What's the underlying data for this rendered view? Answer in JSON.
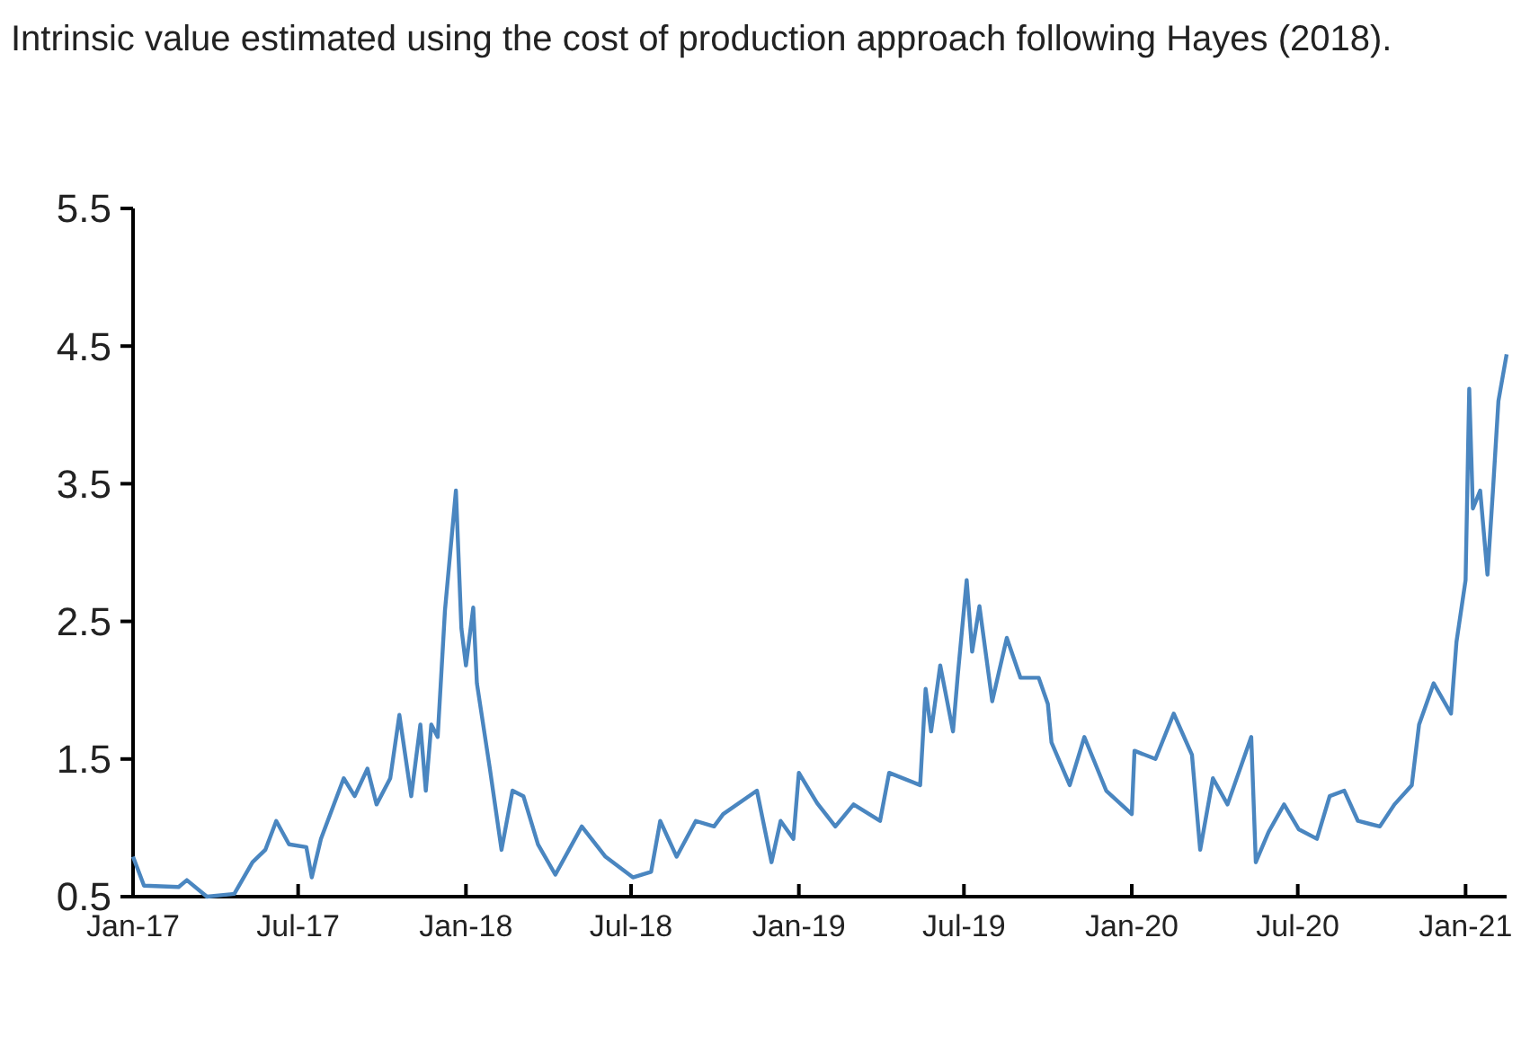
{
  "chart_data": {
    "type": "line",
    "title": "Intrinsic value estimated using the cost of production approach following Hayes (2018).",
    "xlim": [
      "2017-01-01",
      "2021-02-15"
    ],
    "xticks": [
      {
        "value": "2017-01-01",
        "label": "Jan-17"
      },
      {
        "value": "2017-07-01",
        "label": "Jul-17"
      },
      {
        "value": "2018-01-01",
        "label": "Jan-18"
      },
      {
        "value": "2018-07-01",
        "label": "Jul-18"
      },
      {
        "value": "2019-01-01",
        "label": "Jan-19"
      },
      {
        "value": "2019-07-01",
        "label": "Jul-19"
      },
      {
        "value": "2020-01-01",
        "label": "Jan-20"
      },
      {
        "value": "2020-07-01",
        "label": "Jul-20"
      },
      {
        "value": "2021-01-01",
        "label": "Jan-21"
      }
    ],
    "ylim": [
      0.5,
      5.5
    ],
    "yticks": [
      0.5,
      1.5,
      2.5,
      3.5,
      4.5,
      5.5
    ],
    "grid": false,
    "series": [
      {
        "color": "#4a86c0",
        "x": [
          "2017-01-01",
          "2017-01-13",
          "2017-02-20",
          "2017-03-01",
          "2017-03-23",
          "2017-04-22",
          "2017-05-12",
          "2017-05-26",
          "2017-06-07",
          "2017-06-21",
          "2017-07-10",
          "2017-07-16",
          "2017-07-26",
          "2017-08-20",
          "2017-09-01",
          "2017-09-15",
          "2017-09-25",
          "2017-10-10",
          "2017-10-20",
          "2017-11-02",
          "2017-11-12",
          "2017-11-18",
          "2017-11-24",
          "2017-12-01",
          "2017-12-09",
          "2017-12-21",
          "2017-12-27",
          "2018-01-01",
          "2018-01-09",
          "2018-01-13",
          "2018-01-27",
          "2018-02-09",
          "2018-02-21",
          "2018-03-05",
          "2018-03-21",
          "2018-04-09",
          "2018-05-08",
          "2018-06-03",
          "2018-07-03",
          "2018-07-23",
          "2018-08-02",
          "2018-08-20",
          "2018-09-10",
          "2018-09-30",
          "2018-10-10",
          "2018-11-16",
          "2018-12-02",
          "2018-12-12",
          "2018-12-26",
          "2019-01-01",
          "2019-01-21",
          "2019-02-10",
          "2019-03-02",
          "2019-03-31",
          "2019-04-10",
          "2019-05-14",
          "2019-05-20",
          "2019-05-26",
          "2019-06-05",
          "2019-06-19",
          "2019-06-24",
          "2019-07-04",
          "2019-07-10",
          "2019-07-18",
          "2019-08-01",
          "2019-08-17",
          "2019-09-01",
          "2019-09-21",
          "2019-10-01",
          "2019-10-05",
          "2019-10-25",
          "2019-11-10",
          "2019-12-04",
          "2020-01-01",
          "2020-01-04",
          "2020-01-27",
          "2020-02-16",
          "2020-03-07",
          "2020-03-16",
          "2020-03-30",
          "2020-04-15",
          "2020-05-11",
          "2020-05-16",
          "2020-05-30",
          "2020-06-16",
          "2020-07-02",
          "2020-07-22",
          "2020-08-05",
          "2020-08-21",
          "2020-09-05",
          "2020-09-29",
          "2020-10-15",
          "2020-11-03",
          "2020-11-11",
          "2020-11-27",
          "2020-12-16",
          "2020-12-22",
          "2021-01-01",
          "2021-01-05",
          "2021-01-09",
          "2021-01-17",
          "2021-01-25",
          "2021-01-31",
          "2021-02-06",
          "2021-02-15"
        ],
        "values": [
          0.79,
          0.58,
          0.57,
          0.62,
          0.5,
          0.52,
          0.75,
          0.84,
          1.05,
          0.88,
          0.86,
          0.64,
          0.92,
          1.36,
          1.23,
          1.43,
          1.17,
          1.36,
          1.82,
          1.23,
          1.75,
          1.27,
          1.75,
          1.66,
          2.58,
          3.45,
          2.45,
          2.18,
          2.6,
          2.05,
          1.44,
          0.84,
          1.27,
          1.23,
          0.88,
          0.66,
          1.01,
          0.79,
          0.64,
          0.68,
          1.05,
          0.79,
          1.05,
          1.01,
          1.1,
          1.27,
          0.75,
          1.05,
          0.92,
          1.4,
          1.18,
          1.01,
          1.17,
          1.05,
          1.4,
          1.31,
          2.01,
          1.7,
          2.18,
          1.7,
          2.09,
          2.8,
          2.28,
          2.61,
          1.92,
          2.38,
          2.09,
          2.09,
          1.9,
          1.62,
          1.31,
          1.66,
          1.27,
          1.1,
          1.56,
          1.5,
          1.83,
          1.53,
          0.84,
          1.36,
          1.17,
          1.66,
          0.75,
          0.97,
          1.17,
          0.99,
          0.92,
          1.23,
          1.27,
          1.05,
          1.01,
          1.17,
          1.31,
          1.75,
          2.05,
          1.83,
          2.35,
          2.8,
          4.19,
          3.32,
          3.45,
          2.84,
          3.45,
          4.1,
          4.44
        ]
      }
    ]
  }
}
